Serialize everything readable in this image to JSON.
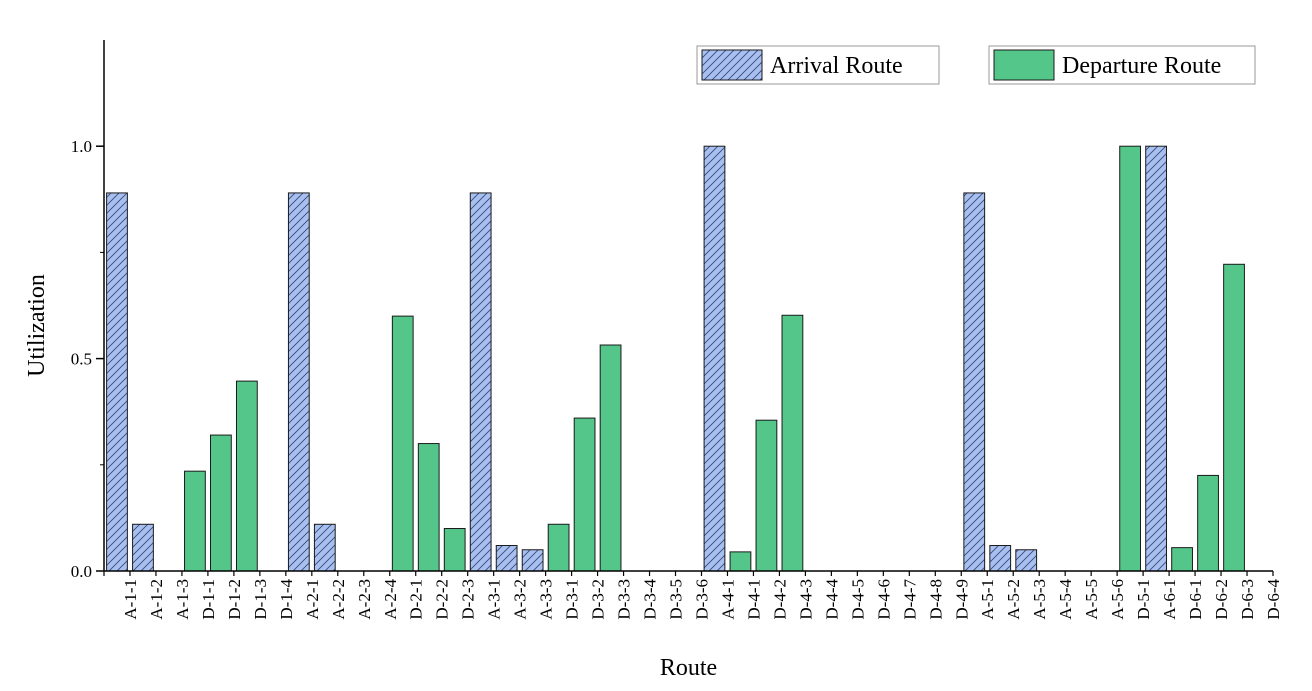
{
  "chart_data": {
    "type": "bar",
    "xlabel": "Route",
    "ylabel": "Utilization",
    "ylim": [
      0,
      1.25
    ],
    "yticks": [
      0.0,
      0.5,
      1.0
    ],
    "ytick_labels": [
      "0.0",
      "0.5",
      "1.0"
    ],
    "grid": false,
    "legend_position": "top-right",
    "categories": [
      "A-1-1",
      "A-1-2",
      "A-1-3",
      "D-1-1",
      "D-1-2",
      "D-1-3",
      "D-1-4",
      "A-2-1",
      "A-2-2",
      "A-2-3",
      "A-2-4",
      "D-2-1",
      "D-2-2",
      "D-2-3",
      "A-3-1",
      "A-3-2",
      "A-3-3",
      "D-3-1",
      "D-3-2",
      "D-3-3",
      "D-3-4",
      "D-3-5",
      "D-3-6",
      "A-4-1",
      "D-4-1",
      "D-4-2",
      "D-4-3",
      "D-4-4",
      "D-4-5",
      "D-4-6",
      "D-4-7",
      "D-4-8",
      "D-4-9",
      "A-5-1",
      "A-5-2",
      "A-5-3",
      "A-5-4",
      "A-5-5",
      "A-5-6",
      "D-5-1",
      "A-6-1",
      "D-6-1",
      "D-6-2",
      "D-6-3",
      "D-6-4"
    ],
    "values": [
      0.89,
      0.11,
      0,
      0.235,
      0.32,
      0.447,
      0,
      0.89,
      0.11,
      0,
      0,
      0.6,
      0.3,
      0.1,
      0.89,
      0.06,
      0.05,
      0.11,
      0.36,
      0.532,
      0,
      0,
      0,
      1.0,
      0.045,
      0.355,
      0.602,
      0,
      0,
      0,
      0,
      0,
      0,
      0.89,
      0.06,
      0.05,
      0,
      0,
      0,
      1.0,
      1.0,
      0.055,
      0.225,
      0.722,
      0
    ],
    "series_types": [
      "arrival",
      "arrival",
      "arrival",
      "departure",
      "departure",
      "departure",
      "departure",
      "arrival",
      "arrival",
      "arrival",
      "arrival",
      "departure",
      "departure",
      "departure",
      "arrival",
      "arrival",
      "arrival",
      "departure",
      "departure",
      "departure",
      "departure",
      "departure",
      "departure",
      "arrival",
      "departure",
      "departure",
      "departure",
      "departure",
      "departure",
      "departure",
      "departure",
      "departure",
      "departure",
      "arrival",
      "arrival",
      "arrival",
      "arrival",
      "arrival",
      "arrival",
      "departure",
      "arrival",
      "departure",
      "departure",
      "departure",
      "departure"
    ],
    "series": [
      {
        "key": "arrival",
        "name": "Arrival Route",
        "color": "#a7c0f0",
        "pattern": "hatch"
      },
      {
        "key": "departure",
        "name": "Departure Route",
        "color": "#55c68a",
        "pattern": "solid"
      }
    ]
  }
}
